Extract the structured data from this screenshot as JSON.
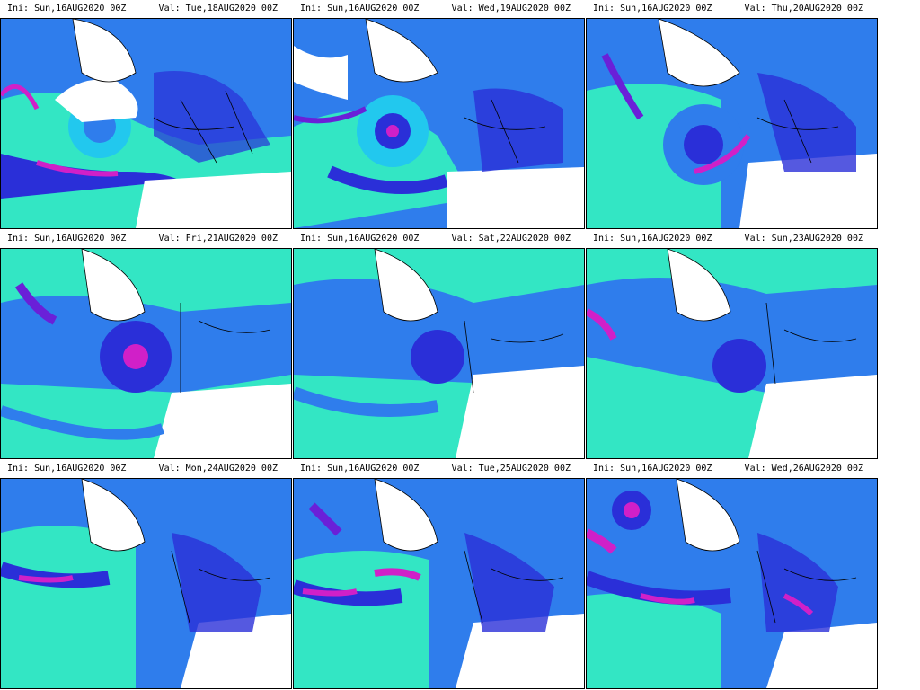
{
  "panels": [
    {
      "ini": "Ini: Sun,16AUG2020 00Z",
      "val": "Val: Tue,18AUG2020 00Z"
    },
    {
      "ini": "Ini: Sun,16AUG2020 00Z",
      "val": "Val: Wed,19AUG2020 00Z"
    },
    {
      "ini": "Ini: Sun,16AUG2020 00Z",
      "val": "Val: Thu,20AUG2020 00Z"
    },
    {
      "ini": "Ini: Sun,16AUG2020 00Z",
      "val": "Val: Fri,21AUG2020 00Z"
    },
    {
      "ini": "Ini: Sun,16AUG2020 00Z",
      "val": "Val: Sat,22AUG2020 00Z"
    },
    {
      "ini": "Ini: Sun,16AUG2020 00Z",
      "val": "Val: Sun,23AUG2020 00Z"
    },
    {
      "ini": "Ini: Sun,16AUG2020 00Z",
      "val": "Val: Mon,24AUG2020 00Z"
    },
    {
      "ini": "Ini: Sun,16AUG2020 00Z",
      "val": "Val: Tue,25AUG2020 00Z"
    },
    {
      "ini": "Ini: Sun,16AUG2020 00Z",
      "val": "Val: Wed,26AUG2020 00Z"
    }
  ],
  "colors": {
    "cyan": "#33e6c4",
    "aqua": "#22c8ee",
    "blue": "#2f7dec",
    "deep": "#2a2fd8",
    "violet": "#6a20d8",
    "magenta": "#d020c8",
    "land": "#ffffff",
    "coast": "#000000"
  }
}
